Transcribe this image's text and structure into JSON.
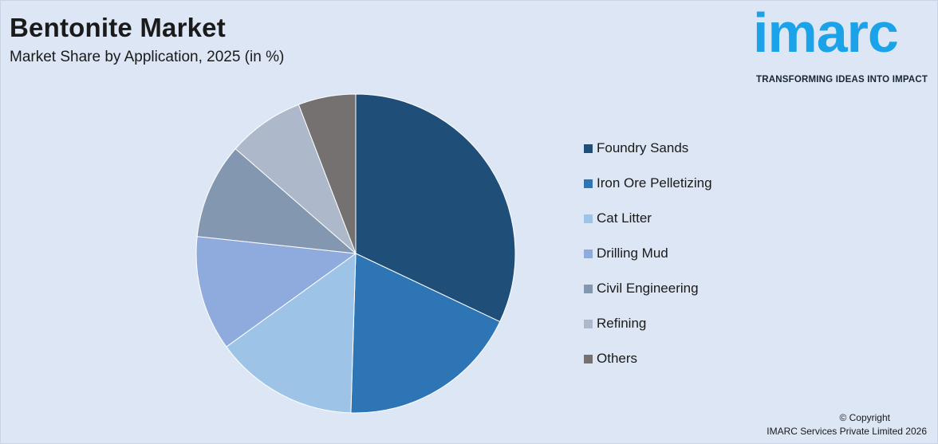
{
  "header": {
    "title": "Bentonite Market",
    "subtitle": "Market Share by Application, 2025 (in %)"
  },
  "logo": {
    "word": "imarc",
    "tagline": "TRANSFORMING IDEAS INTO IMPACT",
    "color": "#1aa3e8"
  },
  "footer": {
    "copyright": "© Copyright",
    "company": "IMARC Services Private Limited 2026"
  },
  "chart_data": {
    "type": "pie",
    "title": "Market Share by Application, 2025 (in %)",
    "legend_position": "right",
    "slices": [
      {
        "label": "Foundry Sands",
        "value": 33,
        "color": "#1f4e79"
      },
      {
        "label": "Iron Ore Pelletizing",
        "value": 19,
        "color": "#2e75b6"
      },
      {
        "label": "Cat Litter",
        "value": 15,
        "color": "#9dc3e6"
      },
      {
        "label": "Drilling Mud",
        "value": 12,
        "color": "#8faadc"
      },
      {
        "label": "Civil Engineering",
        "value": 10,
        "color": "#8497b0"
      },
      {
        "label": "Refining",
        "value": 8,
        "color": "#adb9ca"
      },
      {
        "label": "Others",
        "value": 6,
        "color": "#767171"
      }
    ]
  }
}
